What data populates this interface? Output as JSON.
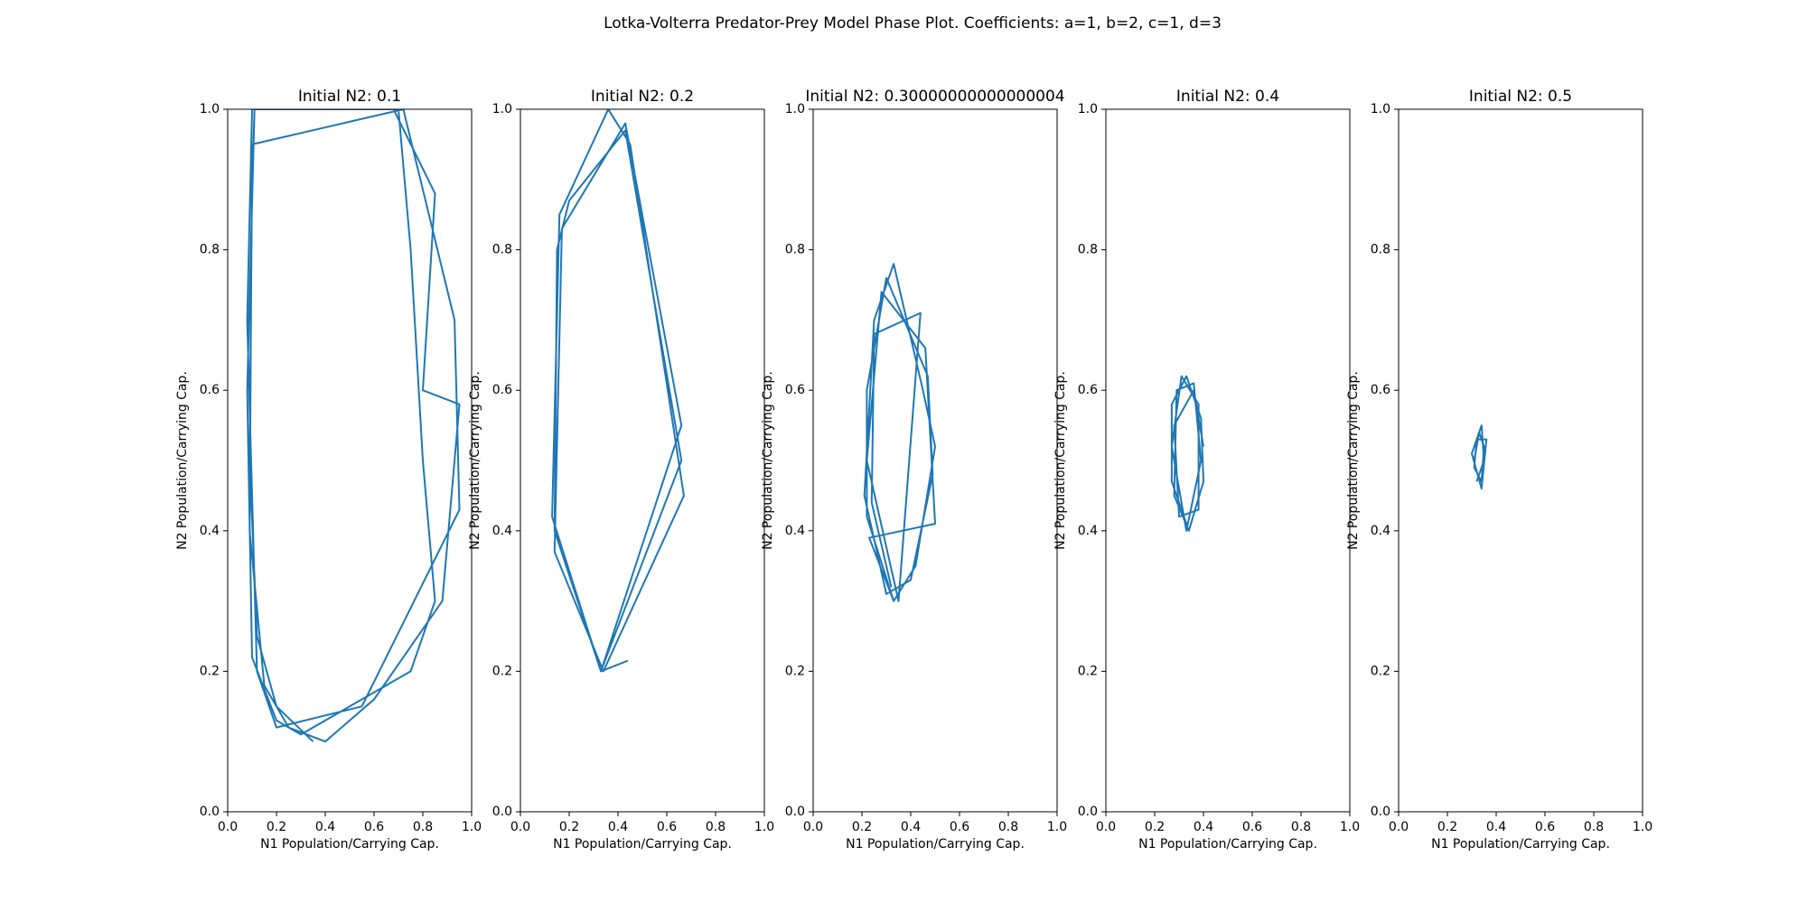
{
  "title": "Lotka-Volterra Predator-Prey Model Phase Plot. Coefficients: a=1, b=2, c=1, d=3",
  "chart_data": [
    {
      "type": "line",
      "title": "Initial N2: 0.1",
      "x_label": "N1 Population/Carrying Cap.",
      "y_label": "N2 Population/Carrying Cap.",
      "xlim": [
        0,
        1
      ],
      "ylim": [
        0,
        1
      ],
      "xticks": [
        {
          "value": 0,
          "label": "0.0"
        },
        0.2,
        0.4,
        0.6,
        0.8,
        {
          "value": 1,
          "label": "1.0"
        }
      ],
      "yticks": [
        {
          "value": 0,
          "label": "0.0"
        },
        0.2,
        0.4,
        0.6,
        0.8,
        {
          "value": 1,
          "label": "1.0"
        }
      ],
      "x": [
        0.35,
        0.2,
        0.12,
        0.09,
        0.1,
        0.11,
        0.7,
        0.75,
        0.8,
        0.85,
        0.75,
        0.5,
        0.3,
        0.2,
        0.1,
        0.08,
        0.11,
        0.68,
        0.85,
        0.8,
        0.95,
        0.88,
        0.6,
        0.4,
        0.25,
        0.15,
        0.09,
        0.1,
        0.72,
        0.93,
        0.95,
        0.55,
        0.2,
        0.12,
        0.08,
        0.1
      ],
      "series": [
        {
          "color": "#1f77b4",
          "values": [
            0.1,
            0.15,
            0.25,
            0.5,
            0.9,
            1.0,
            1.0,
            0.8,
            0.5,
            0.3,
            0.2,
            0.15,
            0.11,
            0.13,
            0.22,
            0.6,
            1.0,
            1.0,
            0.88,
            0.6,
            0.58,
            0.3,
            0.16,
            0.1,
            0.12,
            0.18,
            0.4,
            0.95,
            1.0,
            0.7,
            0.43,
            0.15,
            0.12,
            0.2,
            0.7,
            1.0
          ]
        }
      ]
    },
    {
      "type": "line",
      "title": "Initial N2: 0.2",
      "x_label": "N1 Population/Carrying Cap.",
      "y_label": "N2 Population/Carrying Cap.",
      "xlim": [
        0,
        1
      ],
      "ylim": [
        0,
        1
      ],
      "xticks": [
        {
          "value": 0,
          "label": "0.0"
        },
        0.2,
        0.4,
        0.6,
        0.8,
        {
          "value": 1,
          "label": "1.0"
        }
      ],
      "yticks": [
        {
          "value": 0,
          "label": "0.0"
        },
        0.2,
        0.4,
        0.6,
        0.8,
        {
          "value": 1,
          "label": "1.0"
        }
      ],
      "x": [
        0.33,
        0.14,
        0.15,
        0.2,
        0.43,
        0.66,
        0.33,
        0.13,
        0.16,
        0.36,
        0.45,
        0.67,
        0.34,
        0.14,
        0.17,
        0.43,
        0.66,
        0.33,
        0.44
      ],
      "series": [
        {
          "color": "#1f77b4",
          "values": [
            0.2,
            0.4,
            0.8,
            0.87,
            0.97,
            0.5,
            0.2,
            0.42,
            0.85,
            1.0,
            0.95,
            0.45,
            0.2,
            0.37,
            0.83,
            0.98,
            0.55,
            0.2,
            0.215
          ]
        }
      ]
    },
    {
      "type": "line",
      "title": "Initial N2: 0.30000000000000004",
      "x_label": "N1 Population/Carrying Cap.",
      "y_label": "N2 Population/Carrying Cap.",
      "xlim": [
        0,
        1
      ],
      "ylim": [
        0,
        1
      ],
      "xticks": [
        {
          "value": 0,
          "label": "0.0"
        },
        0.2,
        0.4,
        0.6,
        0.8,
        {
          "value": 1,
          "label": "1.0"
        }
      ],
      "yticks": [
        {
          "value": 0,
          "label": "0.0"
        },
        0.2,
        0.4,
        0.6,
        0.8,
        {
          "value": 1,
          "label": "1.0"
        }
      ],
      "x": [
        0.33,
        0.22,
        0.22,
        0.3,
        0.47,
        0.49,
        0.4,
        0.3,
        0.21,
        0.25,
        0.33,
        0.45,
        0.5,
        0.42,
        0.33,
        0.23,
        0.5,
        0.46,
        0.28,
        0.22,
        0.35,
        0.44,
        0.25,
        0.24,
        0.32
      ],
      "series": [
        {
          "color": "#1f77b4",
          "values": [
            0.3,
            0.42,
            0.6,
            0.76,
            0.62,
            0.48,
            0.33,
            0.31,
            0.45,
            0.7,
            0.78,
            0.6,
            0.52,
            0.35,
            0.3,
            0.39,
            0.41,
            0.66,
            0.74,
            0.5,
            0.3,
            0.71,
            0.68,
            0.44,
            0.32
          ]
        }
      ]
    },
    {
      "type": "line",
      "title": "Initial N2: 0.4",
      "x_label": "N1 Population/Carrying Cap.",
      "y_label": "N2 Population/Carrying Cap.",
      "xlim": [
        0,
        1
      ],
      "ylim": [
        0,
        1
      ],
      "xticks": [
        {
          "value": 0,
          "label": "0.0"
        },
        0.2,
        0.4,
        0.6,
        0.8,
        {
          "value": 1,
          "label": "1.0"
        }
      ],
      "yticks": [
        {
          "value": 0,
          "label": "0.0"
        },
        0.2,
        0.4,
        0.6,
        0.8,
        {
          "value": 1,
          "label": "1.0"
        }
      ],
      "x": [
        0.33,
        0.27,
        0.27,
        0.33,
        0.39,
        0.4,
        0.34,
        0.28,
        0.29,
        0.36,
        0.39,
        0.33,
        0.27,
        0.31,
        0.38,
        0.38,
        0.3,
        0.28,
        0.36,
        0.4
      ],
      "series": [
        {
          "color": "#1f77b4",
          "values": [
            0.41,
            0.47,
            0.58,
            0.62,
            0.56,
            0.47,
            0.4,
            0.45,
            0.6,
            0.61,
            0.5,
            0.4,
            0.52,
            0.62,
            0.58,
            0.43,
            0.42,
            0.55,
            0.6,
            0.52
          ]
        }
      ]
    },
    {
      "type": "line",
      "title": "Initial N2: 0.5",
      "x_label": "N1 Population/Carrying Cap.",
      "y_label": "N2 Population/Carrying Cap.",
      "xlim": [
        0,
        1
      ],
      "ylim": [
        0,
        1
      ],
      "xticks": [
        {
          "value": 0,
          "label": "0.0"
        },
        0.2,
        0.4,
        0.6,
        0.8,
        {
          "value": 1,
          "label": "1.0"
        }
      ],
      "yticks": [
        {
          "value": 0,
          "label": "0.0"
        },
        0.2,
        0.4,
        0.6,
        0.8,
        {
          "value": 1,
          "label": "1.0"
        }
      ],
      "x": [
        0.31,
        0.33,
        0.35,
        0.34,
        0.31,
        0.32,
        0.36,
        0.34,
        0.3,
        0.34,
        0.35,
        0.32
      ],
      "series": [
        {
          "color": "#1f77b4",
          "values": [
            0.5,
            0.54,
            0.52,
            0.47,
            0.49,
            0.53,
            0.53,
            0.46,
            0.51,
            0.55,
            0.5,
            0.47
          ]
        }
      ]
    }
  ]
}
